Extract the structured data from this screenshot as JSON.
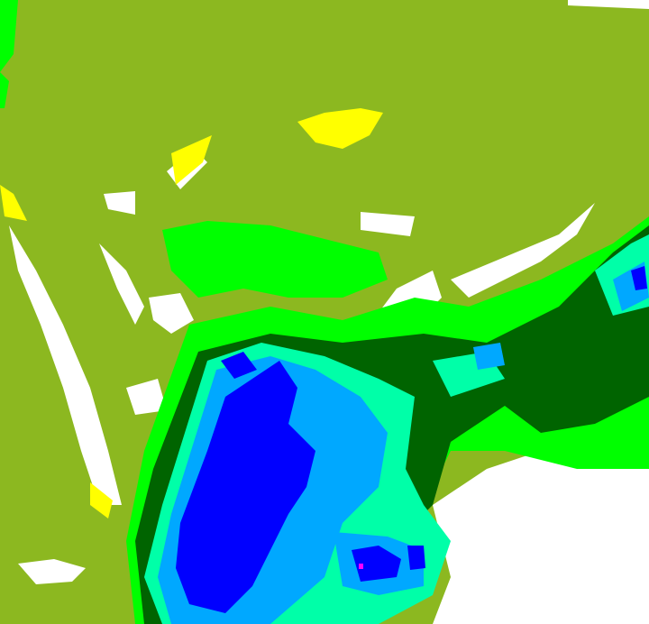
{
  "map": {
    "type": "precipitation-radar-classification",
    "colors": {
      "background": "#8cb820",
      "clear": "#ffffff",
      "yellow": "#ffff00",
      "bright_green": "#00ff00",
      "dark_green": "#006400",
      "aqua": "#00ffa8",
      "light_blue": "#00a8ff",
      "blue": "#0000ff",
      "magenta": "#ff00ff"
    }
  }
}
